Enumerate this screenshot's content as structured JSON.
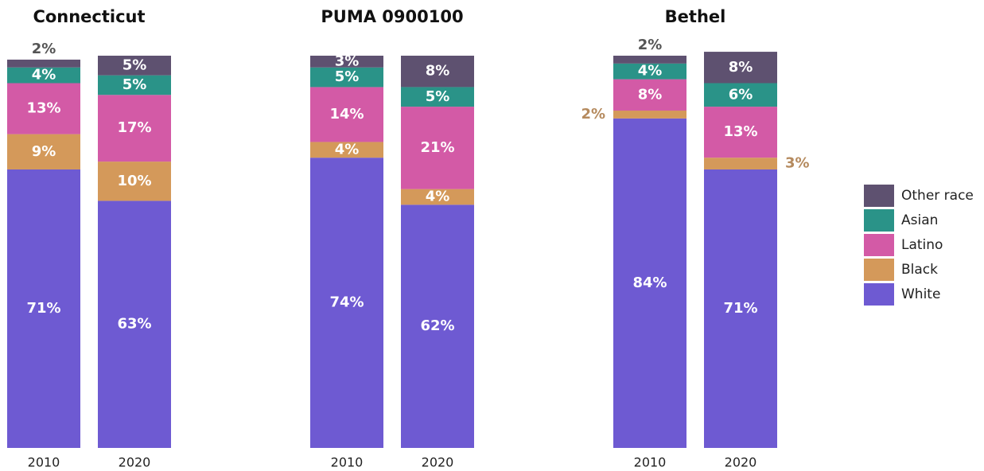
{
  "chart_data": [
    {
      "type": "bar",
      "stacked": true,
      "title": "Connecticut",
      "categories": [
        "2010",
        "2020"
      ],
      "ylim": [
        0,
        100
      ],
      "series": [
        {
          "name": "White",
          "color": "#6e5ad2",
          "values": [
            71,
            63
          ],
          "value_labels": [
            "71%",
            "63%"
          ]
        },
        {
          "name": "Black",
          "color": "#d4995a",
          "values": [
            9,
            10
          ],
          "value_labels": [
            "9%",
            "10%"
          ]
        },
        {
          "name": "Latino",
          "color": "#d35aa6",
          "values": [
            13,
            17
          ],
          "value_labels": [
            "13%",
            "17%"
          ]
        },
        {
          "name": "Asian",
          "color": "#2a9388",
          "values": [
            4,
            5
          ],
          "value_labels": [
            "4%",
            "5%"
          ]
        },
        {
          "name": "Other race",
          "color": "#5e5170",
          "values": [
            2,
            5
          ],
          "value_labels": [
            "2%",
            "5%"
          ]
        }
      ]
    },
    {
      "type": "bar",
      "stacked": true,
      "title": "PUMA 0900100",
      "categories": [
        "2010",
        "2020"
      ],
      "ylim": [
        0,
        100
      ],
      "series": [
        {
          "name": "White",
          "color": "#6e5ad2",
          "values": [
            74,
            62
          ],
          "value_labels": [
            "74%",
            "62%"
          ]
        },
        {
          "name": "Black",
          "color": "#d4995a",
          "values": [
            4,
            4
          ],
          "value_labels": [
            "4%",
            "4%"
          ]
        },
        {
          "name": "Latino",
          "color": "#d35aa6",
          "values": [
            14,
            21
          ],
          "value_labels": [
            "14%",
            "21%"
          ]
        },
        {
          "name": "Asian",
          "color": "#2a9388",
          "values": [
            5,
            5
          ],
          "value_labels": [
            "5%",
            "5%"
          ]
        },
        {
          "name": "Other race",
          "color": "#5e5170",
          "values": [
            3,
            8
          ],
          "value_labels": [
            "3%",
            "8%"
          ]
        }
      ]
    },
    {
      "type": "bar",
      "stacked": true,
      "title": "Bethel",
      "categories": [
        "2010",
        "2020"
      ],
      "ylim": [
        0,
        100
      ],
      "series": [
        {
          "name": "White",
          "color": "#6e5ad2",
          "values": [
            84,
            71
          ],
          "value_labels": [
            "84%",
            "71%"
          ]
        },
        {
          "name": "Black",
          "color": "#d4995a",
          "values": [
            2,
            3
          ],
          "value_labels": [
            "2%",
            "3%"
          ]
        },
        {
          "name": "Latino",
          "color": "#d35aa6",
          "values": [
            8,
            13
          ],
          "value_labels": [
            "8%",
            "13%"
          ]
        },
        {
          "name": "Asian",
          "color": "#2a9388",
          "values": [
            4,
            6
          ],
          "value_labels": [
            "4%",
            "6%"
          ]
        },
        {
          "name": "Other race",
          "color": "#5e5170",
          "values": [
            2,
            8
          ],
          "value_labels": [
            "2%",
            "8%"
          ]
        }
      ]
    }
  ]
}
